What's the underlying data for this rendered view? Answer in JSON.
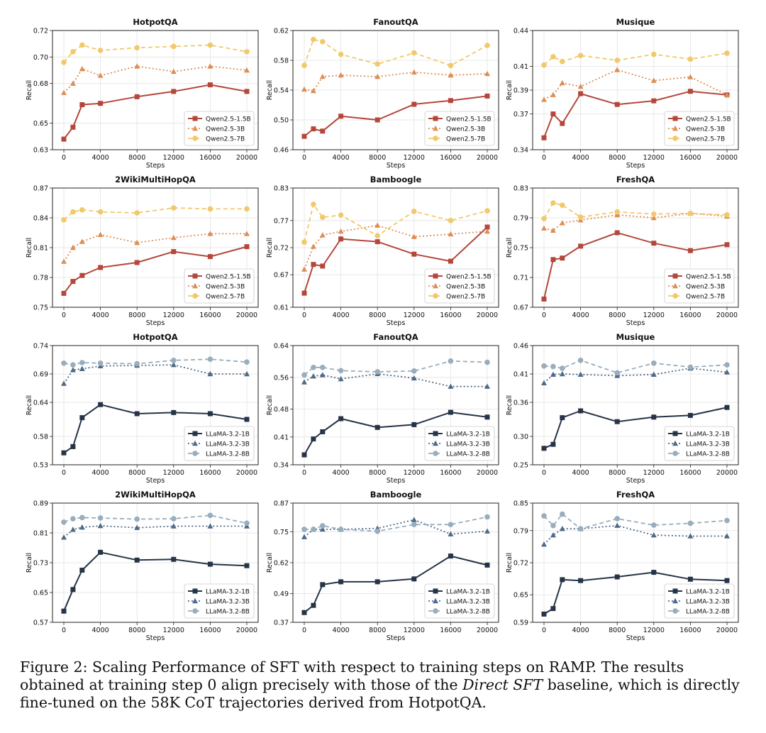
{
  "figure": {
    "x_label": "Steps",
    "y_label": "Recall",
    "x_ticks": [
      "0",
      "4000",
      "8000",
      "12000",
      "16000",
      "20000"
    ],
    "colors": {
      "Qwen2.5-1.5B": "#b5473a",
      "Qwen2.5-3B": "#db8e57",
      "Qwen2.5-7B": "#f0c96a",
      "LLaMA-3.2-1B": "#263447",
      "LLaMA-3.2-3B": "#4e6a87",
      "LLaMA-3.2-8B": "#98adbd"
    }
  },
  "chart_data": [
    {
      "type": "line",
      "title": "HotpotQA",
      "xlabel": "Steps",
      "ylabel": "Recall",
      "yticks": [
        "0.63",
        "0.65",
        "0.68",
        "0.70",
        "0.72"
      ],
      "ylim": [
        0.63,
        0.72
      ],
      "x": [
        0,
        1000,
        2000,
        4000,
        8000,
        12000,
        16000,
        20000
      ],
      "series": [
        {
          "name": "Qwen2.5-1.5B",
          "values": [
            0.638,
            0.647,
            0.664,
            0.665,
            0.67,
            0.674,
            0.679,
            0.674
          ]
        },
        {
          "name": "Qwen2.5-3B",
          "values": [
            0.673,
            0.68,
            0.691,
            0.686,
            0.693,
            0.689,
            0.693,
            0.69
          ]
        },
        {
          "name": "Qwen2.5-7B",
          "values": [
            0.696,
            0.704,
            0.709,
            0.705,
            0.707,
            0.708,
            0.709,
            0.704
          ]
        }
      ]
    },
    {
      "type": "line",
      "title": "FanoutQA",
      "xlabel": "Steps",
      "ylabel": "Recall",
      "yticks": [
        "0.46",
        "0.50",
        "0.54",
        "0.58",
        "0.62"
      ],
      "ylim": [
        0.46,
        0.62
      ],
      "x": [
        0,
        1000,
        2000,
        4000,
        8000,
        12000,
        16000,
        20000
      ],
      "series": [
        {
          "name": "Qwen2.5-1.5B",
          "values": [
            0.478,
            0.488,
            0.485,
            0.505,
            0.5,
            0.521,
            0.526,
            0.532
          ]
        },
        {
          "name": "Qwen2.5-3B",
          "values": [
            0.541,
            0.539,
            0.558,
            0.56,
            0.558,
            0.564,
            0.56,
            0.562
          ]
        },
        {
          "name": "Qwen2.5-7B",
          "values": [
            0.573,
            0.608,
            0.605,
            0.588,
            0.575,
            0.59,
            0.573,
            0.6
          ]
        }
      ]
    },
    {
      "type": "line",
      "title": "Musique",
      "xlabel": "Steps",
      "ylabel": "Recall",
      "yticks": [
        "0.34",
        "0.37",
        "0.39",
        "0.41",
        "0.44"
      ],
      "ylim": [
        0.34,
        0.44
      ],
      "x": [
        0,
        1000,
        2000,
        4000,
        8000,
        12000,
        16000,
        20000
      ],
      "series": [
        {
          "name": "Qwen2.5-1.5B",
          "values": [
            0.35,
            0.37,
            0.362,
            0.387,
            0.378,
            0.381,
            0.389,
            0.386
          ]
        },
        {
          "name": "Qwen2.5-3B",
          "values": [
            0.382,
            0.386,
            0.396,
            0.393,
            0.407,
            0.398,
            0.401,
            0.386
          ]
        },
        {
          "name": "Qwen2.5-7B",
          "values": [
            0.411,
            0.418,
            0.414,
            0.419,
            0.415,
            0.42,
            0.416,
            0.421
          ]
        }
      ]
    },
    {
      "type": "line",
      "title": "2WikiMultiHopQA",
      "xlabel": "Steps",
      "ylabel": "Recall",
      "yticks": [
        "0.75",
        "0.78",
        "0.81",
        "0.84",
        "0.87"
      ],
      "ylim": [
        0.75,
        0.87
      ],
      "x": [
        0,
        1000,
        2000,
        4000,
        8000,
        12000,
        16000,
        20000
      ],
      "series": [
        {
          "name": "Qwen2.5-1.5B",
          "values": [
            0.764,
            0.776,
            0.782,
            0.79,
            0.795,
            0.806,
            0.801,
            0.811
          ]
        },
        {
          "name": "Qwen2.5-3B",
          "values": [
            0.796,
            0.81,
            0.816,
            0.823,
            0.815,
            0.82,
            0.824,
            0.824
          ]
        },
        {
          "name": "Qwen2.5-7B",
          "values": [
            0.838,
            0.846,
            0.848,
            0.846,
            0.845,
            0.85,
            0.849,
            0.849
          ]
        }
      ]
    },
    {
      "type": "line",
      "title": "Bamboogle",
      "xlabel": "Steps",
      "ylabel": "Recall",
      "yticks": [
        "0.61",
        "0.67",
        "0.72",
        "0.77",
        "0.83"
      ],
      "ylim": [
        0.61,
        0.83
      ],
      "x": [
        0,
        1000,
        2000,
        4000,
        8000,
        12000,
        16000,
        20000
      ],
      "series": [
        {
          "name": "Qwen2.5-1.5B",
          "values": [
            0.636,
            0.689,
            0.686,
            0.736,
            0.731,
            0.708,
            0.695,
            0.758
          ]
        },
        {
          "name": "Qwen2.5-3B",
          "values": [
            0.68,
            0.722,
            0.743,
            0.75,
            0.761,
            0.74,
            0.745,
            0.75
          ]
        },
        {
          "name": "Qwen2.5-7B",
          "values": [
            0.73,
            0.8,
            0.776,
            0.78,
            0.742,
            0.787,
            0.77,
            0.788
          ]
        }
      ]
    },
    {
      "type": "line",
      "title": "FreshQA",
      "xlabel": "Steps",
      "ylabel": "Recall",
      "yticks": [
        "0.67",
        "0.71",
        "0.75",
        "0.79",
        "0.83"
      ],
      "ylim": [
        0.67,
        0.83
      ],
      "x": [
        0,
        1000,
        2000,
        4000,
        8000,
        12000,
        16000,
        20000
      ],
      "series": [
        {
          "name": "Qwen2.5-1.5B",
          "values": [
            0.681,
            0.734,
            0.736,
            0.752,
            0.77,
            0.756,
            0.746,
            0.754
          ]
        },
        {
          "name": "Qwen2.5-3B",
          "values": [
            0.776,
            0.773,
            0.783,
            0.787,
            0.794,
            0.79,
            0.796,
            0.792
          ]
        },
        {
          "name": "Qwen2.5-7B",
          "values": [
            0.789,
            0.81,
            0.807,
            0.791,
            0.798,
            0.795,
            0.796,
            0.794
          ]
        }
      ]
    },
    {
      "type": "line",
      "title": "HotpotQA",
      "xlabel": "Steps",
      "ylabel": "Recall",
      "yticks": [
        "0.53",
        "0.58",
        "0.64",
        "0.69",
        "0.74"
      ],
      "ylim": [
        0.53,
        0.74
      ],
      "x": [
        0,
        1000,
        2000,
        4000,
        8000,
        12000,
        16000,
        20000
      ],
      "series": [
        {
          "name": "LLaMA-3.2-1B",
          "values": [
            0.551,
            0.562,
            0.613,
            0.636,
            0.62,
            0.622,
            0.62,
            0.61
          ]
        },
        {
          "name": "LLaMA-3.2-3B",
          "values": [
            0.673,
            0.697,
            0.699,
            0.704,
            0.705,
            0.706,
            0.69,
            0.69
          ]
        },
        {
          "name": "LLaMA-3.2-8B",
          "values": [
            0.709,
            0.706,
            0.71,
            0.709,
            0.708,
            0.714,
            0.716,
            0.711
          ]
        }
      ]
    },
    {
      "type": "line",
      "title": "FanoutQA",
      "xlabel": "Steps",
      "ylabel": "Recall",
      "yticks": [
        "0.34",
        "0.41",
        "0.48",
        "0.56",
        "0.64"
      ],
      "ylim": [
        0.34,
        0.64
      ],
      "x": [
        0,
        1000,
        2000,
        4000,
        8000,
        12000,
        16000,
        20000
      ],
      "series": [
        {
          "name": "LLaMA-3.2-1B",
          "values": [
            0.365,
            0.405,
            0.423,
            0.456,
            0.434,
            0.441,
            0.472,
            0.46
          ]
        },
        {
          "name": "LLaMA-3.2-3B",
          "values": [
            0.548,
            0.563,
            0.566,
            0.556,
            0.569,
            0.558,
            0.537,
            0.537
          ]
        },
        {
          "name": "LLaMA-3.2-8B",
          "values": [
            0.566,
            0.585,
            0.585,
            0.577,
            0.574,
            0.576,
            0.601,
            0.598
          ]
        }
      ]
    },
    {
      "type": "line",
      "title": "Musique",
      "xlabel": "Steps",
      "ylabel": "Recall",
      "yticks": [
        "0.25",
        "0.30",
        "0.36",
        "0.41",
        "0.46"
      ],
      "ylim": [
        0.25,
        0.46
      ],
      "x": [
        0,
        1000,
        2000,
        4000,
        8000,
        12000,
        16000,
        20000
      ],
      "series": [
        {
          "name": "LLaMA-3.2-1B",
          "values": [
            0.279,
            0.286,
            0.333,
            0.345,
            0.326,
            0.334,
            0.337,
            0.351
          ]
        },
        {
          "name": "LLaMA-3.2-3B",
          "values": [
            0.394,
            0.409,
            0.41,
            0.409,
            0.407,
            0.409,
            0.42,
            0.413
          ]
        },
        {
          "name": "LLaMA-3.2-8B",
          "values": [
            0.424,
            0.423,
            0.42,
            0.434,
            0.412,
            0.429,
            0.422,
            0.426
          ]
        }
      ]
    },
    {
      "type": "line",
      "title": "2WikiMultiHopQA",
      "xlabel": "Steps",
      "ylabel": "Recall",
      "yticks": [
        "0.57",
        "0.65",
        "0.73",
        "0.81",
        "0.89"
      ],
      "ylim": [
        0.57,
        0.89
      ],
      "x": [
        0,
        1000,
        2000,
        4000,
        8000,
        12000,
        16000,
        20000
      ],
      "series": [
        {
          "name": "LLaMA-3.2-1B",
          "values": [
            0.6,
            0.658,
            0.71,
            0.758,
            0.737,
            0.739,
            0.726,
            0.722
          ]
        },
        {
          "name": "LLaMA-3.2-3B",
          "values": [
            0.798,
            0.819,
            0.825,
            0.829,
            0.824,
            0.828,
            0.828,
            0.828
          ]
        },
        {
          "name": "LLaMA-3.2-8B",
          "values": [
            0.839,
            0.848,
            0.851,
            0.85,
            0.847,
            0.848,
            0.857,
            0.836
          ]
        }
      ]
    },
    {
      "type": "line",
      "title": "Bamboogle",
      "xlabel": "Steps",
      "ylabel": "Recall",
      "yticks": [
        "0.37",
        "0.49",
        "0.62",
        "0.75",
        "0.87"
      ],
      "ylim": [
        0.37,
        0.87
      ],
      "x": [
        0,
        1000,
        2000,
        4000,
        8000,
        12000,
        16000,
        20000
      ],
      "series": [
        {
          "name": "LLaMA-3.2-1B",
          "values": [
            0.411,
            0.441,
            0.528,
            0.54,
            0.54,
            0.552,
            0.648,
            0.61
          ]
        },
        {
          "name": "LLaMA-3.2-3B",
          "values": [
            0.728,
            0.76,
            0.76,
            0.76,
            0.764,
            0.8,
            0.74,
            0.752
          ]
        },
        {
          "name": "LLaMA-3.2-8B",
          "values": [
            0.76,
            0.76,
            0.775,
            0.76,
            0.752,
            0.78,
            0.78,
            0.812
          ]
        }
      ]
    },
    {
      "type": "line",
      "title": "FreshQA",
      "xlabel": "Steps",
      "ylabel": "Recall",
      "yticks": [
        "0.59",
        "0.65",
        "0.72",
        "0.79",
        "0.85"
      ],
      "ylim": [
        0.59,
        0.85
      ],
      "x": [
        0,
        1000,
        2000,
        4000,
        8000,
        12000,
        16000,
        20000
      ],
      "series": [
        {
          "name": "LLaMA-3.2-1B",
          "values": [
            0.608,
            0.62,
            0.683,
            0.681,
            0.689,
            0.699,
            0.684,
            0.681
          ]
        },
        {
          "name": "LLaMA-3.2-3B",
          "values": [
            0.76,
            0.78,
            0.794,
            0.794,
            0.801,
            0.78,
            0.778,
            0.778
          ]
        },
        {
          "name": "LLaMA-3.2-8B",
          "values": [
            0.822,
            0.801,
            0.826,
            0.794,
            0.816,
            0.802,
            0.806,
            0.812
          ]
        }
      ]
    }
  ],
  "caption": {
    "part1": "Figure 2: Scaling Performance of SFT with respect to training steps on RAMP. The results obtained at training step 0 align precisely with those of the ",
    "italic": "Direct SFT",
    "part2": " baseline, which is directly fine-tuned on the 58K CoT trajectories derived from HotpotQA."
  }
}
